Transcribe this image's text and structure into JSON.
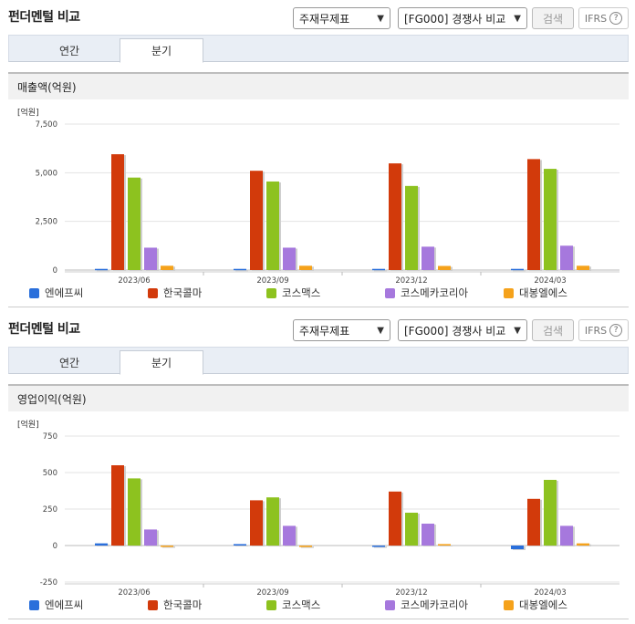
{
  "colors": {
    "companies": [
      "#2a6fdb",
      "#d23a0b",
      "#8dc21f",
      "#a678dd",
      "#f5a21b"
    ],
    "accent_title": "#222222",
    "tab_bg": "#e9eef5"
  },
  "sections": [
    {
      "title": "펀더멘털 비교",
      "select_statement": "주재무제표",
      "select_compare": "[FG000] 경쟁사 비교",
      "search_label": "검색",
      "ifrs_label": "IFRS",
      "ifrs_help_icon": "question-circle-icon",
      "tabs": [
        {
          "label": "연간",
          "active": false
        },
        {
          "label": "분기",
          "active": true
        }
      ],
      "metric_label": "매출액(억원)",
      "unit_label": "[억원]"
    },
    {
      "title": "펀더멘털 비교",
      "select_statement": "주재무제표",
      "select_compare": "[FG000] 경쟁사 비교",
      "search_label": "검색",
      "ifrs_label": "IFRS",
      "ifrs_help_icon": "question-circle-icon",
      "tabs": [
        {
          "label": "연간",
          "active": false
        },
        {
          "label": "분기",
          "active": true
        }
      ],
      "metric_label": "영업이익(억원)",
      "unit_label": "[억원]"
    }
  ],
  "legend": [
    "엔에프씨",
    "한국콜마",
    "코스맥스",
    "코스메카코리아",
    "대봉엘에스"
  ],
  "chart_data": [
    {
      "type": "bar",
      "title": "매출액(억원)",
      "ylabel": "[억원]",
      "categories": [
        "2023/06",
        "2023/09",
        "2023/12",
        "2024/03"
      ],
      "yticks": [
        "0",
        "2,500",
        "5,000",
        "7,500"
      ],
      "ylim": [
        0,
        7500
      ],
      "series": [
        {
          "name": "엔에프씨",
          "values": [
            60,
            60,
            60,
            60
          ]
        },
        {
          "name": "한국콜마",
          "values": [
            5950,
            5100,
            5480,
            5700
          ]
        },
        {
          "name": "코스맥스",
          "values": [
            4750,
            4550,
            4320,
            5200
          ]
        },
        {
          "name": "코스메카코리아",
          "values": [
            1150,
            1150,
            1200,
            1250
          ]
        },
        {
          "name": "대봉엘에스",
          "values": [
            220,
            220,
            210,
            220
          ]
        }
      ]
    },
    {
      "type": "bar",
      "title": "영업이익(억원)",
      "ylabel": "[억원]",
      "categories": [
        "2023/06",
        "2023/09",
        "2023/12",
        "2024/03"
      ],
      "yticks": [
        "-250",
        "0",
        "250",
        "500",
        "750"
      ],
      "ylim": [
        -250,
        750
      ],
      "series": [
        {
          "name": "엔에프씨",
          "values": [
            15,
            10,
            -8,
            -25
          ]
        },
        {
          "name": "한국콜마",
          "values": [
            550,
            310,
            370,
            320
          ]
        },
        {
          "name": "코스맥스",
          "values": [
            460,
            330,
            225,
            450
          ]
        },
        {
          "name": "코스메카코리아",
          "values": [
            110,
            135,
            150,
            135
          ]
        },
        {
          "name": "대봉엘에스",
          "values": [
            0,
            -10,
            10,
            15
          ]
        }
      ]
    }
  ]
}
